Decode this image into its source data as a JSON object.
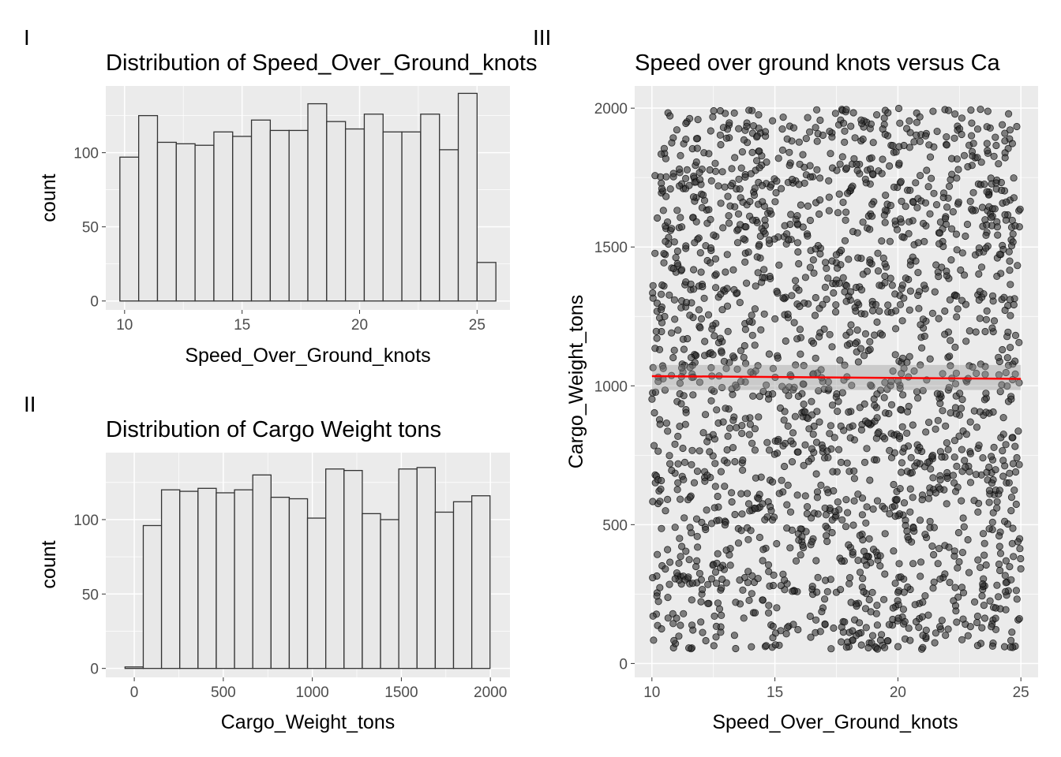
{
  "chart_data": [
    {
      "panel_tag": "I",
      "type": "bar",
      "title": "Distribution of Speed_Over_Ground_knots",
      "xlabel": "Speed_Over_Ground_knots",
      "ylabel": "count",
      "xlim": [
        9.2,
        26.4
      ],
      "ylim": [
        -6,
        145
      ],
      "xticks": [
        10,
        15,
        20,
        25
      ],
      "yticks": [
        0,
        50,
        100
      ],
      "bins_x0": 9.8,
      "bin_width": 0.8,
      "values": [
        97,
        125,
        107,
        106,
        105,
        114,
        111,
        122,
        115,
        115,
        133,
        121,
        116,
        126,
        114,
        114,
        126,
        102,
        140,
        26
      ]
    },
    {
      "panel_tag": "II",
      "type": "bar",
      "title": "Distribution of Cargo Weight tons",
      "xlabel": "Cargo_Weight_tons",
      "ylabel": "count",
      "xlim": [
        -160,
        2110
      ],
      "ylim": [
        -6,
        145
      ],
      "xticks": [
        0,
        500,
        1000,
        1500,
        2000
      ],
      "yticks": [
        0,
        50,
        100
      ],
      "bins_x0": -52,
      "bin_width": 102.5,
      "values": [
        1,
        96,
        120,
        119,
        121,
        118,
        120,
        130,
        115,
        114,
        101,
        134,
        133,
        104,
        100,
        134,
        135,
        105,
        112,
        116
      ]
    },
    {
      "panel_tag": "III",
      "type": "scatter",
      "title": "Speed over ground knots versus Ca",
      "xlabel": "Speed_Over_Ground_knots",
      "ylabel": "Cargo_Weight_tons",
      "xlim": [
        9.3,
        25.7
      ],
      "ylim": [
        -50,
        2080
      ],
      "xticks": [
        10,
        15,
        20,
        25
      ],
      "yticks": [
        0,
        500,
        1000,
        1500,
        2000
      ],
      "n_points": 2000,
      "x_range": [
        10,
        25
      ],
      "y_range": [
        50,
        2000
      ],
      "trend_line": {
        "x": [
          10,
          25
        ],
        "y": [
          1035,
          1025
        ],
        "color": "#ff0000"
      },
      "confidence_band": [
        985,
        1075
      ],
      "point_color": "#333333"
    }
  ]
}
